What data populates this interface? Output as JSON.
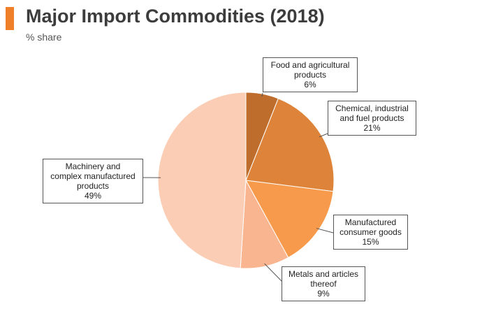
{
  "header": {
    "title": "Major Import Commodities (2018)",
    "subtitle": "% share",
    "accent_color": "#f07f2a"
  },
  "chart_data": {
    "type": "pie",
    "title": "Major Import Commodities (2018)",
    "subtitle": "% share",
    "start_angle_deg": 0,
    "direction": "clockwise",
    "legend": "none",
    "slices": [
      {
        "label_lines": [
          "Food and agricultural",
          "products"
        ],
        "value": 6,
        "value_label": "6%",
        "color": "#bf6d2d"
      },
      {
        "label_lines": [
          "Chemical, industrial",
          "and fuel products"
        ],
        "value": 21,
        "value_label": "21%",
        "color": "#de843a"
      },
      {
        "label_lines": [
          "Manufactured",
          "consumer goods"
        ],
        "value": 15,
        "value_label": "15%",
        "color": "#f79a4b"
      },
      {
        "label_lines": [
          "Metals and articles",
          "thereof"
        ],
        "value": 9,
        "value_label": "9%",
        "color": "#f8b58f"
      },
      {
        "label_lines": [
          "Machinery and",
          "complex manufactured",
          "products"
        ],
        "value": 49,
        "value_label": "49%",
        "color": "#fbcdb5"
      }
    ]
  }
}
